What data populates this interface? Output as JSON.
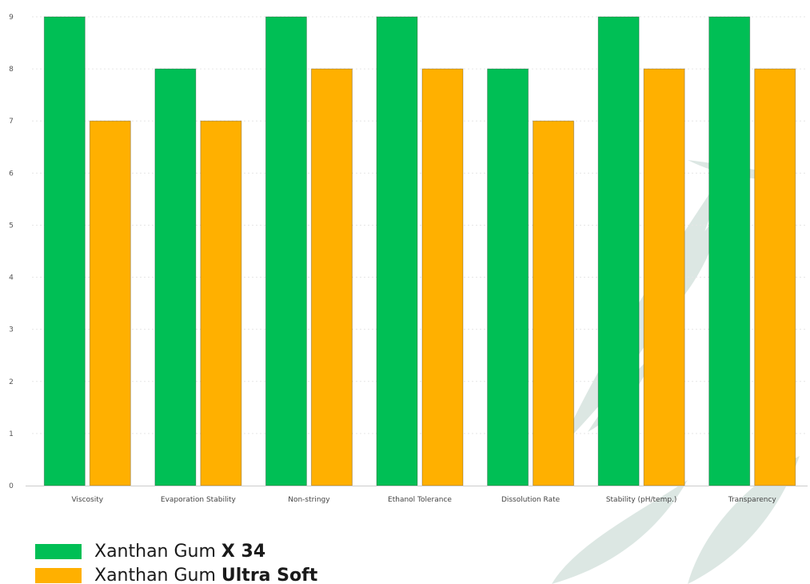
{
  "chart_data": {
    "type": "bar",
    "categories": [
      "Viscosity",
      "Evaporation Stability",
      "Non-stringy",
      "Ethanol Tolerance",
      "Dissolution Rate",
      "Stability (pH/temp.)",
      "Transparency"
    ],
    "series": [
      {
        "name": "Xanthan Gum X 34",
        "color": "#00bf55",
        "values": [
          9,
          8,
          9,
          9,
          8,
          9,
          9
        ]
      },
      {
        "name": "Xanthan Gum Ultra Soft",
        "color": "#ffb000",
        "values": [
          7,
          7,
          8,
          8,
          7,
          8,
          8
        ]
      }
    ],
    "yticks": [
      0,
      1,
      2,
      3,
      4,
      5,
      6,
      7,
      8,
      9
    ],
    "ylim": [
      0,
      9
    ],
    "grid": true,
    "legend_position": "bottom-left"
  },
  "legend": [
    {
      "prefix": "Xanthan Gum ",
      "bold": "X 34",
      "color": "#00bf55"
    },
    {
      "prefix": "Xanthan Gum ",
      "bold": "Ultra Soft",
      "color": "#ffb000"
    }
  ],
  "background": {
    "decor": "leaf-watermark-icon",
    "color": "#dbe6e2"
  }
}
